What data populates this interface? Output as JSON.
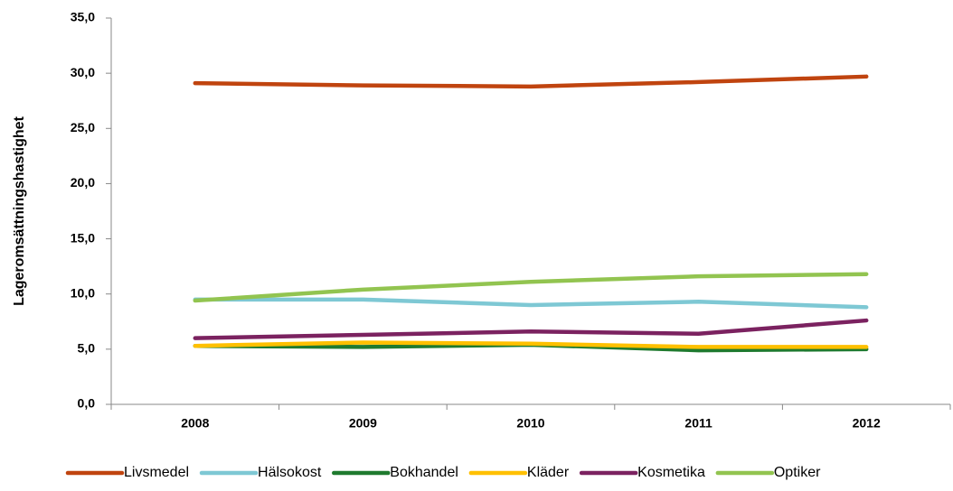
{
  "chart_data": {
    "type": "line",
    "y_label": "Lageromsättningshastighet",
    "categories": [
      "2008",
      "2009",
      "2010",
      "2011",
      "2012"
    ],
    "series": [
      {
        "name": "Livsmedel",
        "color": "#c0440f",
        "values": [
          29.1,
          28.9,
          28.8,
          29.2,
          29.7
        ]
      },
      {
        "name": "Hälsokost",
        "color": "#7ec8d4",
        "values": [
          9.5,
          9.5,
          9.0,
          9.3,
          8.8
        ]
      },
      {
        "name": "Bokhandel",
        "color": "#1f7a2e",
        "values": [
          5.3,
          5.2,
          5.4,
          4.9,
          5.0
        ]
      },
      {
        "name": "Kläder",
        "color": "#ffc000",
        "values": [
          5.3,
          5.6,
          5.5,
          5.2,
          5.2
        ]
      },
      {
        "name": "Kosmetika",
        "color": "#7b2260",
        "values": [
          6.0,
          6.3,
          6.6,
          6.4,
          7.6
        ]
      },
      {
        "name": "Optiker",
        "color": "#92c450",
        "values": [
          9.4,
          10.4,
          11.1,
          11.6,
          11.8
        ]
      }
    ],
    "ylim": [
      0,
      35
    ],
    "yticks": [
      {
        "value": 0,
        "label": "0,0"
      },
      {
        "value": 5,
        "label": "5,0"
      },
      {
        "value": 10,
        "label": "10,0"
      },
      {
        "value": 15,
        "label": "15,0"
      },
      {
        "value": 20,
        "label": "20,0"
      },
      {
        "value": 25,
        "label": "25,0"
      },
      {
        "value": 30,
        "label": "30,0"
      },
      {
        "value": 35,
        "label": "35,0"
      }
    ],
    "grid": false,
    "legend": "bottom"
  }
}
